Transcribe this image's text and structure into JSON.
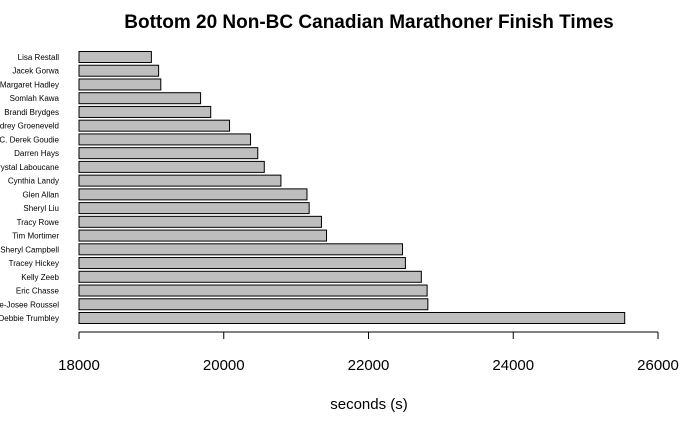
{
  "chart_data": {
    "type": "bar",
    "orientation": "horizontal",
    "title": "Bottom 20 Non-BC Canadian Marathoner Finish Times",
    "xlabel": "seconds (s)",
    "ylabel": "",
    "xlim": [
      18000,
      26000
    ],
    "xticks": [
      "18000",
      "20000",
      "22000",
      "24000",
      "26000"
    ],
    "bar_color": "#bebebe",
    "categories": [
      "Lisa Restall",
      "Jacek Gorwa",
      "Margaret Hadley",
      "Somlah Kawa",
      "Brandi Brydges",
      "Audrey Groeneveld",
      "C. Derek Goudie",
      "Darren Hays",
      "Crystal Laboucane",
      "Cynthia Landy",
      "Glen Allan",
      "Sheryl Liu",
      "Tracy Rowe",
      "Tim Mortimer",
      "Sheryl Campbell",
      "Tracey Hickey",
      "Kelly Zeeb",
      "Eric Chasse",
      "Marie-Josee Roussel",
      "Debbie Trumbley"
    ],
    "values": [
      19000,
      19100,
      19130,
      19680,
      19820,
      20080,
      20370,
      20470,
      20560,
      20790,
      21150,
      21180,
      21350,
      21420,
      22470,
      22510,
      22730,
      22810,
      22820,
      25540
    ]
  }
}
